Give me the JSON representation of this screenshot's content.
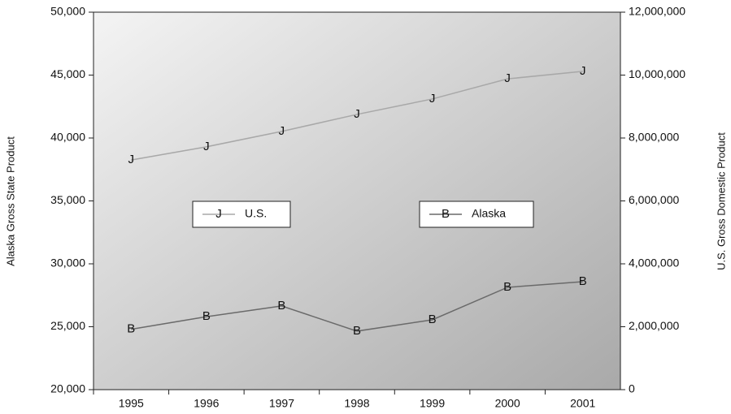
{
  "chart_data": {
    "type": "line",
    "y_label": "Alaska Gross State Product",
    "y2_label": "U.S. Gross Domestic Product",
    "categories": [
      "1995",
      "1996",
      "1997",
      "1998",
      "1999",
      "2000",
      "2001"
    ],
    "series": [
      {
        "name": "U.S.",
        "color": "#a8a8a8",
        "marker": "J",
        "axis": "y2",
        "values": [
          7300000,
          7720000,
          8210000,
          8750000,
          9240000,
          9880000,
          10120000
        ]
      },
      {
        "name": "Alaska",
        "color": "#6a6a6a",
        "marker": "B",
        "values": [
          24800,
          25800,
          26650,
          24650,
          25550,
          28130,
          28580
        ]
      }
    ],
    "ylim": [
      20000,
      50000
    ],
    "yticks": [
      {
        "value": 20000,
        "label": "20,000"
      },
      {
        "value": 25000,
        "label": "25,000"
      },
      {
        "value": 30000,
        "label": "30,000"
      },
      {
        "value": 35000,
        "label": "35,000"
      },
      {
        "value": 40000,
        "label": "40,000"
      },
      {
        "value": 45000,
        "label": "45,000"
      },
      {
        "value": 50000,
        "label": "50,000"
      }
    ],
    "y2lim": [
      0,
      12000000
    ],
    "y2ticks": [
      0,
      {
        "value": 2000000,
        "label": "2,000,000"
      },
      {
        "value": 4000000,
        "label": "4,000,000"
      },
      {
        "value": 6000000,
        "label": "6,000,000"
      },
      {
        "value": 8000000,
        "label": "8,000,000"
      },
      {
        "value": 10000000,
        "label": "10,000,000"
      },
      {
        "value": 12000000,
        "label": "12,000,000"
      }
    ]
  }
}
